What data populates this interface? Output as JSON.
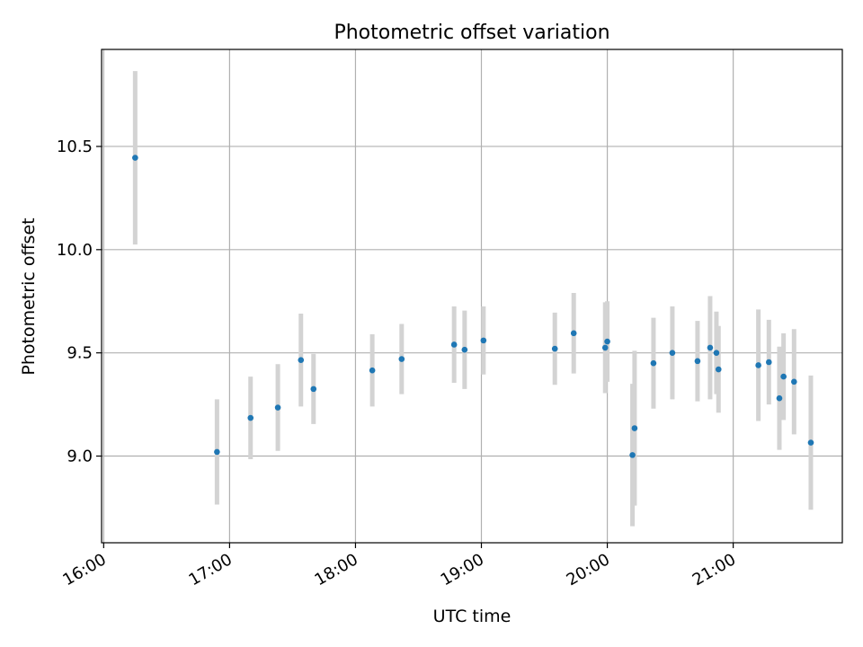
{
  "chart_data": {
    "type": "scatter",
    "title": "Photometric offset variation",
    "xlabel": "UTC time",
    "ylabel": "Photometric offset",
    "x_ticks": [
      "16:00",
      "17:00",
      "18:00",
      "19:00",
      "20:00",
      "21:00"
    ],
    "y_ticks": [
      "9.0",
      "9.5",
      "10.0",
      "10.5"
    ],
    "xlim": [
      "15:59",
      "21:52"
    ],
    "ylim": [
      8.58,
      10.97
    ],
    "grid": true,
    "colors": {
      "points": "#1f77b4",
      "error_bars": "#d3d3d3",
      "grid": "#b0b0b0"
    },
    "points": [
      {
        "x": "16:15",
        "y": 10.445,
        "err": 0.42
      },
      {
        "x": "16:54",
        "y": 9.02,
        "err": 0.255
      },
      {
        "x": "17:10",
        "y": 9.185,
        "err": 0.2
      },
      {
        "x": "17:23",
        "y": 9.235,
        "err": 0.21
      },
      {
        "x": "17:34",
        "y": 9.465,
        "err": 0.225
      },
      {
        "x": "17:40",
        "y": 9.325,
        "err": 0.17
      },
      {
        "x": "18:08",
        "y": 9.415,
        "err": 0.175
      },
      {
        "x": "18:22",
        "y": 9.47,
        "err": 0.17
      },
      {
        "x": "18:47",
        "y": 9.54,
        "err": 0.185
      },
      {
        "x": "18:52",
        "y": 9.515,
        "err": 0.19
      },
      {
        "x": "19:01",
        "y": 9.56,
        "err": 0.165
      },
      {
        "x": "19:35",
        "y": 9.52,
        "err": 0.175
      },
      {
        "x": "19:44",
        "y": 9.595,
        "err": 0.195
      },
      {
        "x": "19:59",
        "y": 9.525,
        "err": 0.22
      },
      {
        "x": "20:00",
        "y": 9.555,
        "err": 0.195
      },
      {
        "x": "20:12",
        "y": 9.005,
        "err": 0.345
      },
      {
        "x": "20:13",
        "y": 9.135,
        "err": 0.375
      },
      {
        "x": "20:22",
        "y": 9.45,
        "err": 0.22
      },
      {
        "x": "20:31",
        "y": 9.5,
        "err": 0.225
      },
      {
        "x": "20:43",
        "y": 9.46,
        "err": 0.195
      },
      {
        "x": "20:49",
        "y": 9.525,
        "err": 0.25
      },
      {
        "x": "20:52",
        "y": 9.5,
        "err": 0.2
      },
      {
        "x": "20:53",
        "y": 9.42,
        "err": 0.21
      },
      {
        "x": "21:12",
        "y": 9.44,
        "err": 0.27
      },
      {
        "x": "21:17",
        "y": 9.455,
        "err": 0.205
      },
      {
        "x": "21:22",
        "y": 9.28,
        "err": 0.25
      },
      {
        "x": "21:24",
        "y": 9.385,
        "err": 0.21
      },
      {
        "x": "21:29",
        "y": 9.36,
        "err": 0.255
      },
      {
        "x": "21:37",
        "y": 9.065,
        "err": 0.325
      }
    ]
  }
}
